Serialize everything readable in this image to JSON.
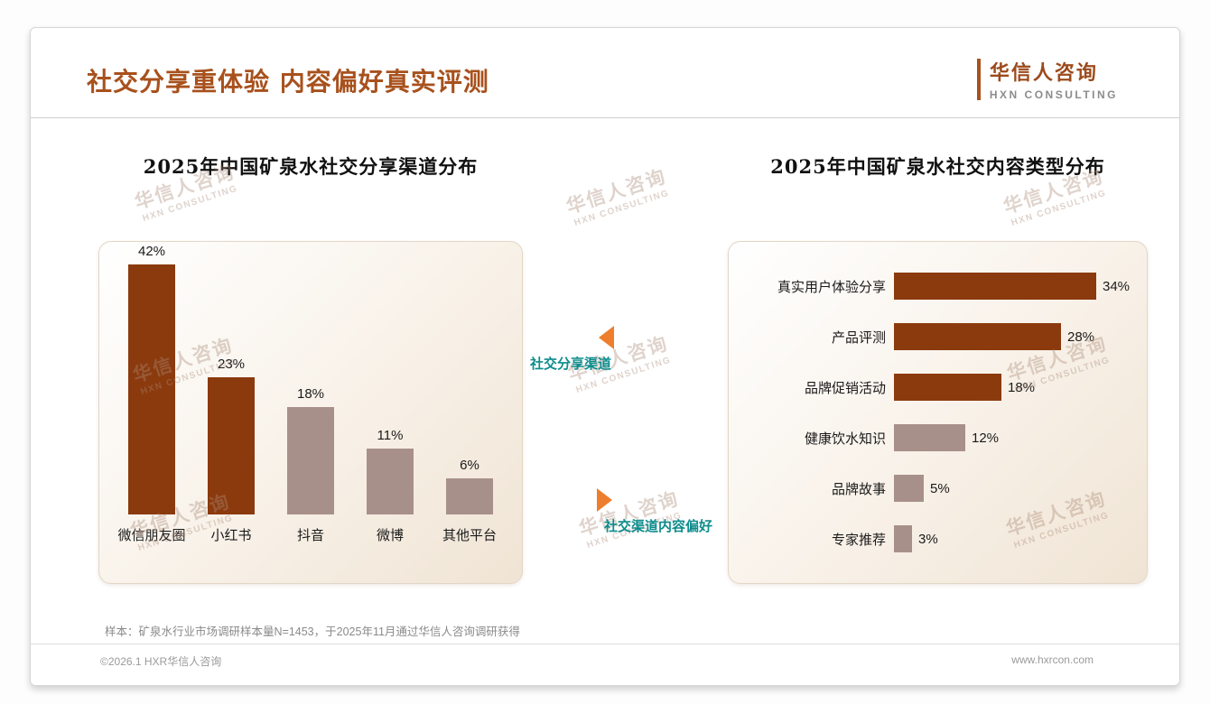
{
  "page": {
    "title": "社交分享重体验 内容偏好真实评测",
    "logo": {
      "name": "华信人咨询",
      "sub": "HXN CONSULTING"
    },
    "watermark": {
      "line1": "华信人咨询",
      "line2": "HXN CONSULTING"
    },
    "sample_note": "样本：矿泉水行业市场调研样本量N=1453，于2025年11月通过华信人咨询调研获得",
    "footer": {
      "left": "©2026.1 HXR华信人咨询",
      "right": "www.hxrcon.com"
    }
  },
  "annotations": [
    {
      "label": "社交分享渠道",
      "arrow": "left"
    },
    {
      "label": "社交渠道内容偏好",
      "arrow": "right"
    }
  ],
  "colors": {
    "accent": "#A8511D",
    "bar_dark": "#8B3A0E",
    "bar_light": "#A8908A",
    "teal": "#0D8C8C",
    "orange": "#EE7E2D"
  },
  "chart_data": [
    {
      "type": "bar",
      "orientation": "vertical",
      "title": "2025年中国矿泉水社交分享渠道分布",
      "categories": [
        "微信朋友圈",
        "小红书",
        "抖音",
        "微博",
        "其他平台"
      ],
      "values": [
        42,
        23,
        18,
        11,
        6
      ],
      "data_labels": [
        "42%",
        "23%",
        "18%",
        "11%",
        "6%"
      ],
      "unit": "%",
      "ylim": [
        0,
        45
      ],
      "grid": false,
      "bar_colors": [
        "#8B3A0E",
        "#8B3A0E",
        "#A8908A",
        "#A8908A",
        "#A8908A"
      ]
    },
    {
      "type": "bar",
      "orientation": "horizontal",
      "title": "2025年中国矿泉水社交内容类型分布",
      "categories": [
        "真实用户体验分享",
        "产品评测",
        "品牌促销活动",
        "健康饮水知识",
        "品牌故事",
        "专家推荐"
      ],
      "values": [
        34,
        28,
        18,
        12,
        5,
        3
      ],
      "data_labels": [
        "34%",
        "28%",
        "18%",
        "12%",
        "5%",
        "3%"
      ],
      "unit": "%",
      "xlim": [
        0,
        40
      ],
      "grid": false,
      "bar_colors": [
        "#8B3A0E",
        "#8B3A0E",
        "#8B3A0E",
        "#A8908A",
        "#A8908A",
        "#A8908A"
      ]
    }
  ]
}
